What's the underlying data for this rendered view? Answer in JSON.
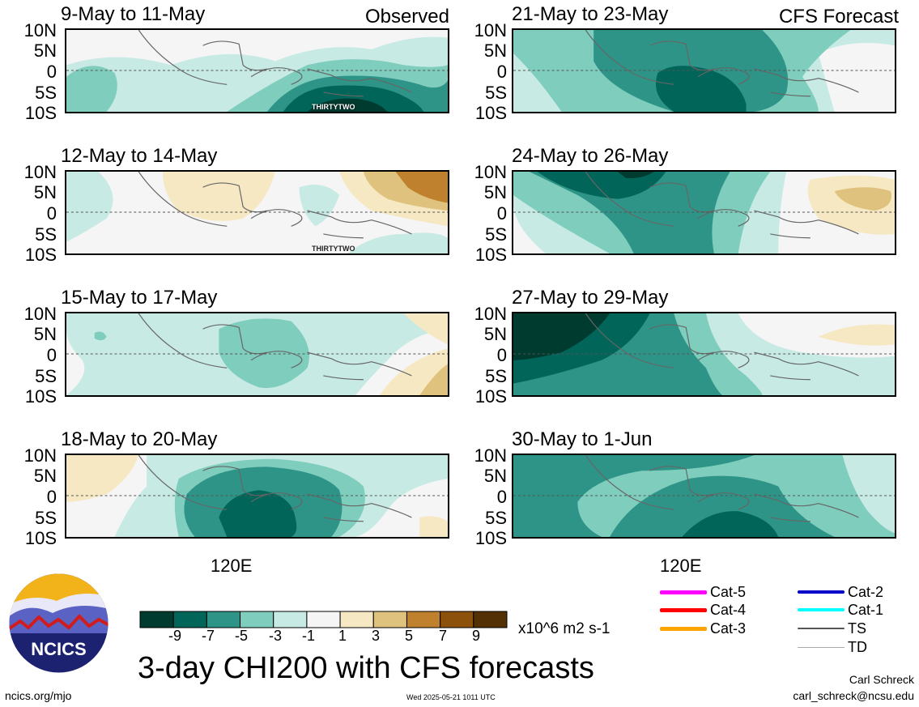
{
  "panels": [
    {
      "id": "p1",
      "title": "9-May to 11-May",
      "corner": "Observed"
    },
    {
      "id": "p2",
      "title": "21-May to 23-May",
      "corner": "CFS Forecast"
    },
    {
      "id": "p3",
      "title": "12-May to 14-May",
      "corner": ""
    },
    {
      "id": "p4",
      "title": "24-May to 26-May",
      "corner": ""
    },
    {
      "id": "p5",
      "title": "15-May to 17-May",
      "corner": ""
    },
    {
      "id": "p6",
      "title": "27-May to 29-May",
      "corner": ""
    },
    {
      "id": "p7",
      "title": "18-May to 20-May",
      "corner": ""
    },
    {
      "id": "p8",
      "title": "30-May to 1-Jun",
      "corner": ""
    }
  ],
  "lat_labels": [
    "10N",
    "5N",
    "0",
    "5S",
    "10S"
  ],
  "lon_label": "120E",
  "storm_labels": {
    "p1": "THIRTYTWO",
    "p3": "THIRTYTWO"
  },
  "colorbar": {
    "ticks": [
      "-9",
      "-7",
      "-5",
      "-3",
      "-1",
      "1",
      "3",
      "5",
      "7",
      "9"
    ],
    "colors": [
      "#003b30",
      "#01655a",
      "#2e9488",
      "#7fcdbd",
      "#c7eae4",
      "#f5f5f5",
      "#f6e8c3",
      "#dfc27d",
      "#bf812d",
      "#8c510a",
      "#543005"
    ],
    "units": "x10^6 m2 s-1"
  },
  "title": "3-day CHI200 with CFS forecasts",
  "legend": [
    {
      "label": "Cat-5",
      "color": "#ff00ff"
    },
    {
      "label": "Cat-4",
      "color": "#ff0000"
    },
    {
      "label": "Cat-3",
      "color": "#ffa500"
    },
    {
      "label": "Cat-2",
      "color": "#0000cd"
    },
    {
      "label": "Cat-1",
      "color": "#00ffff"
    },
    {
      "label": "TS",
      "color": "#555555"
    },
    {
      "label": "TD",
      "color": "#aaaaaa"
    }
  ],
  "logo_text": "NCICS",
  "footer": {
    "url": "ncics.org/mjo",
    "timestamp": "Wed 2025-05-21 1011 UTC",
    "author": "Carl Schreck",
    "email": "carl_schreck@ncsu.edu"
  }
}
